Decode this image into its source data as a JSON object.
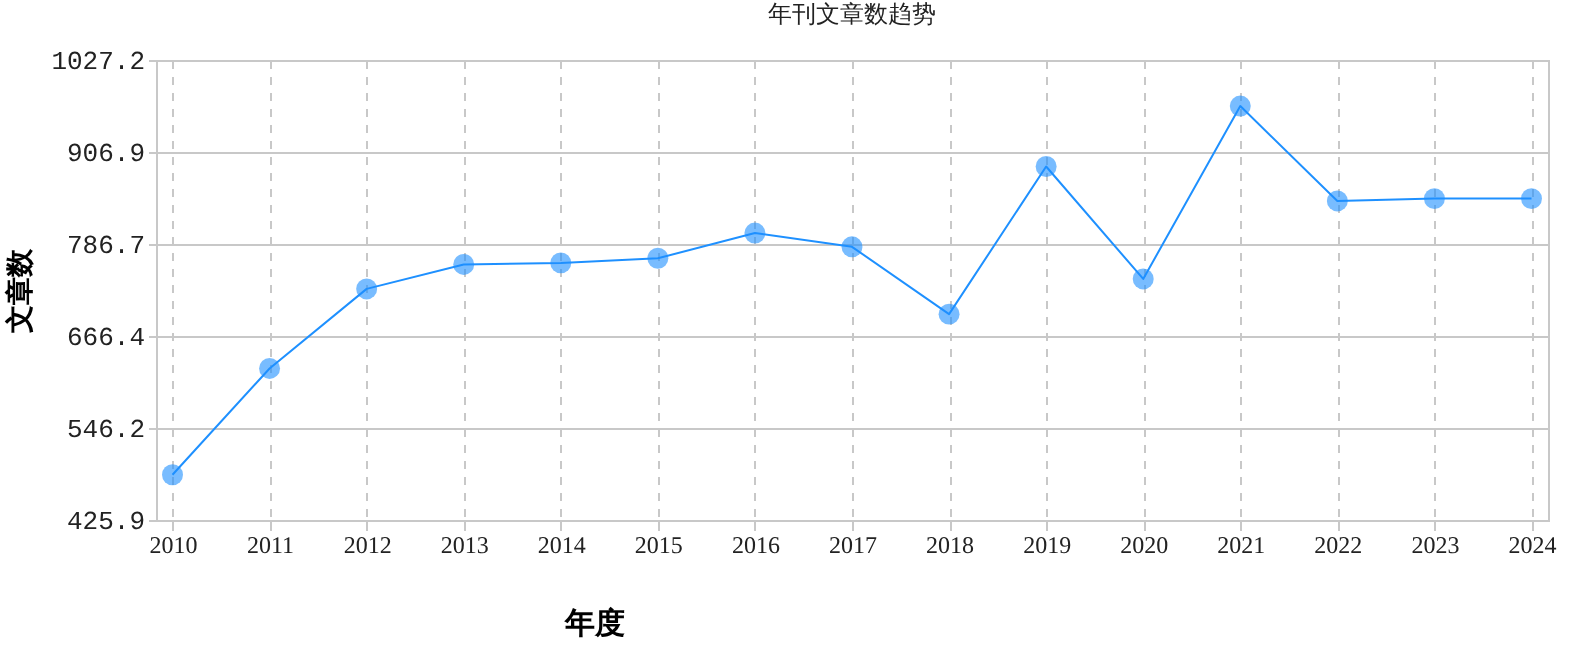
{
  "chart_data": {
    "type": "line",
    "title": "年刊文章数趋势",
    "xlabel": "年度",
    "ylabel": "文章数",
    "categories": [
      "2010",
      "2011",
      "2012",
      "2013",
      "2014",
      "2015",
      "2016",
      "2017",
      "2018",
      "2019",
      "2020",
      "2021",
      "2022",
      "2023",
      "2024"
    ],
    "series": [
      {
        "color": "#1e90ff",
        "values": [
          485,
          624,
          728,
          760,
          762,
          768,
          801,
          783,
          695,
          888,
          741,
          967,
          843,
          846,
          846
        ]
      }
    ],
    "ylim": [
      425.9,
      1027.2
    ],
    "yticks": [
      425.9,
      546.2,
      666.4,
      786.7,
      906.9,
      1027.2
    ],
    "grid": true,
    "marker": "circle",
    "line_style": "solid",
    "legend": false
  }
}
